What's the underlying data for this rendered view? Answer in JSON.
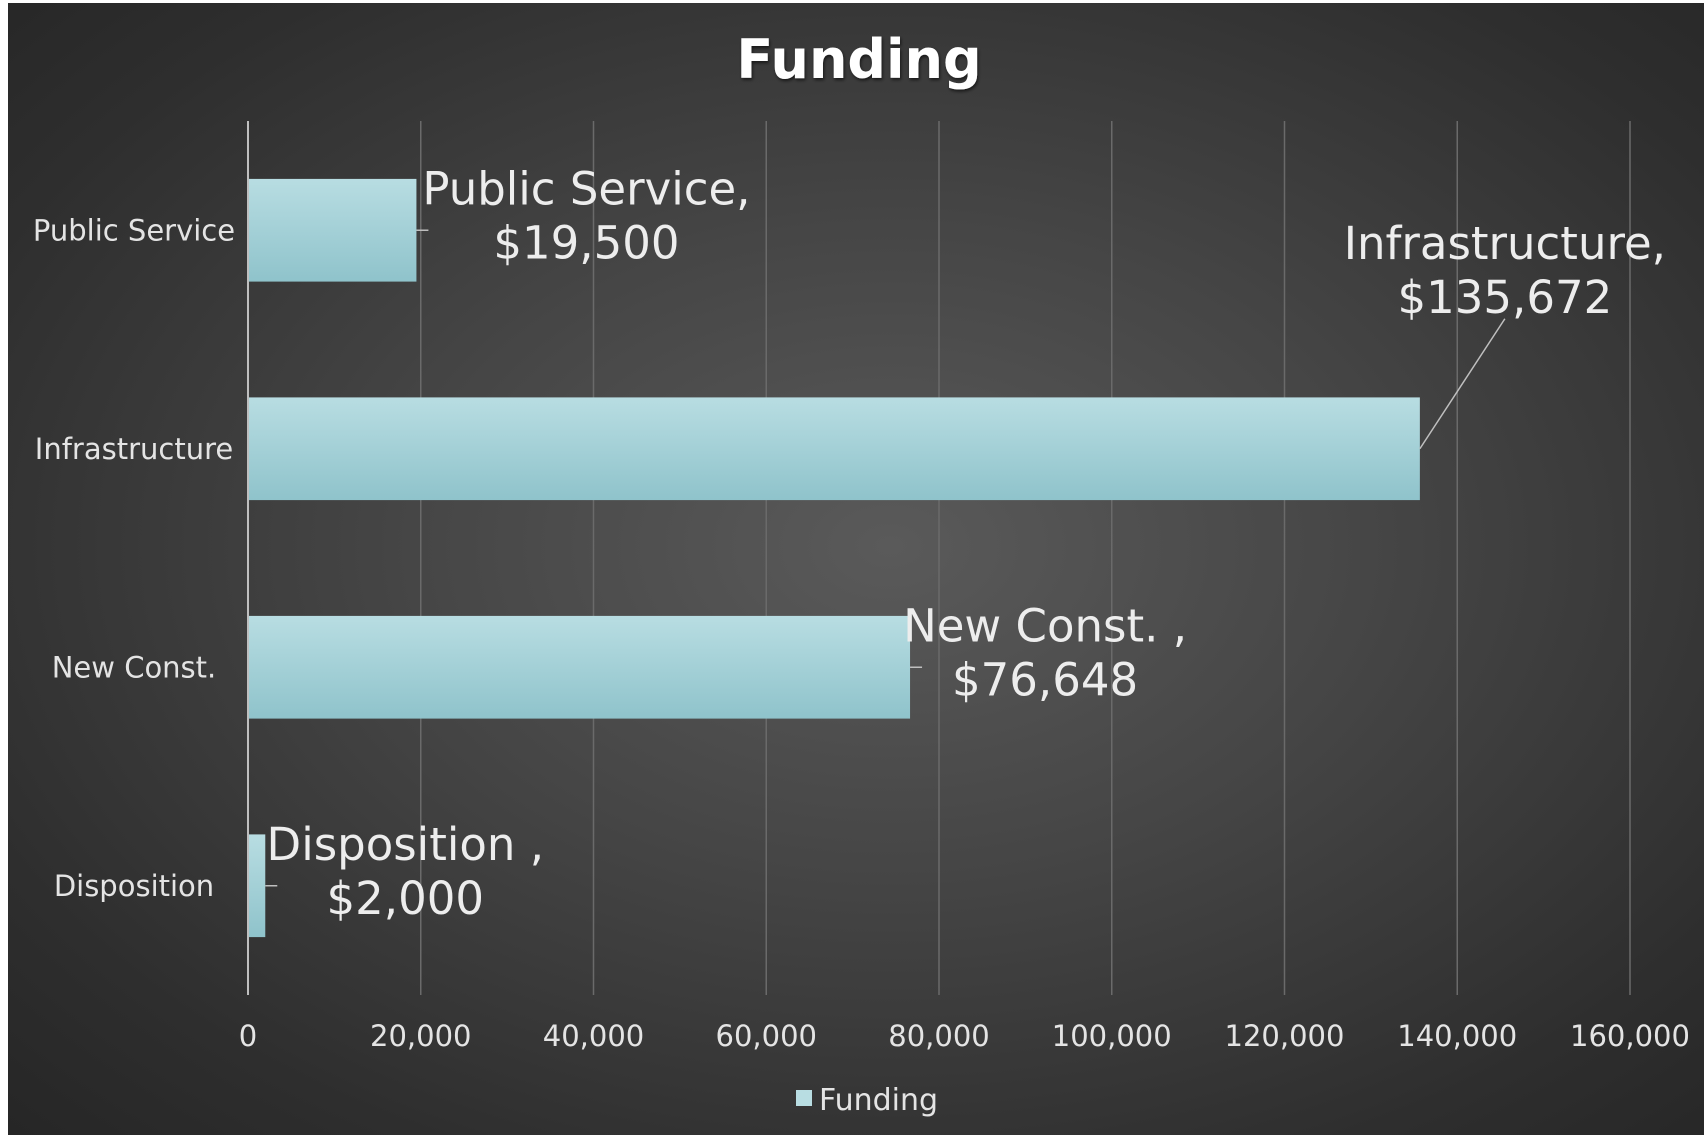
{
  "chart_data": {
    "type": "bar",
    "orientation": "horizontal",
    "title": "Funding",
    "categories": [
      "Public Service",
      "Infrastructure",
      "New Const.",
      "Disposition"
    ],
    "series": [
      {
        "name": "Funding",
        "values": [
          19500,
          135672,
          76648,
          2000
        ],
        "data_labels": [
          [
            "Public Service,",
            "$19,500"
          ],
          [
            "Infrastructure,",
            "$135,672"
          ],
          [
            "New Const. ,",
            "$76,648"
          ],
          [
            "Disposition ,",
            "$2,000"
          ]
        ]
      }
    ],
    "xlim": [
      0,
      160000
    ],
    "x_ticks": [
      "0",
      "20,000",
      "40,000",
      "60,000",
      "80,000",
      "100,000",
      "120,000",
      "140,000",
      "160,000"
    ],
    "grid": true,
    "legend": "bottom",
    "colors": {
      "bar_top": "#b8dde2",
      "bar_bottom": "#8fc3cb",
      "background": "#3c3c3c",
      "text": "#e4e4e4"
    }
  }
}
